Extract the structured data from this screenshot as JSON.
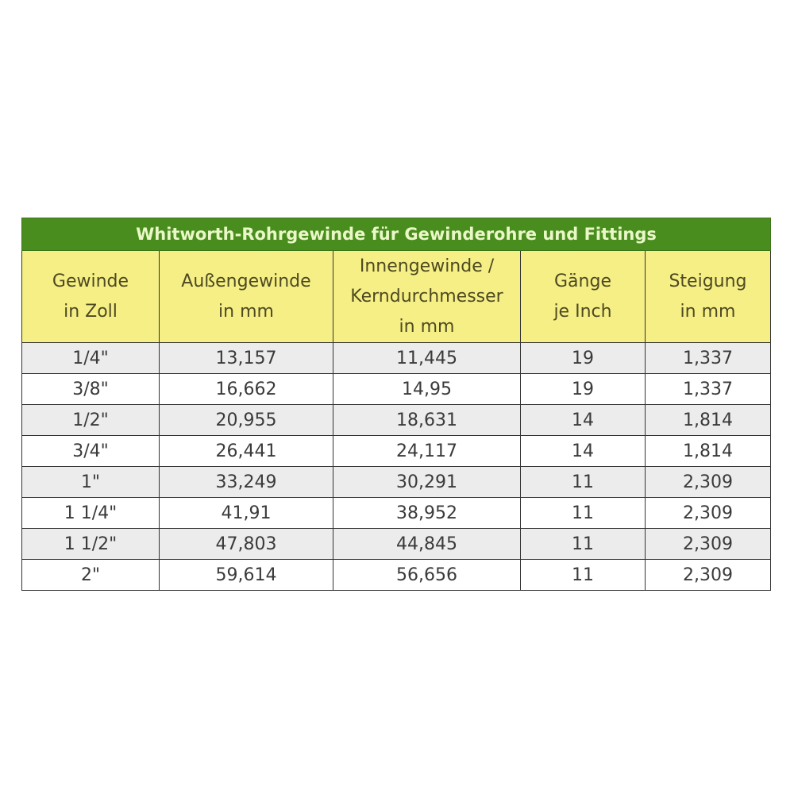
{
  "title": "Whitworth-Rohrgewinde für Gewinderohre und Fittings",
  "colors": {
    "title_bg": "#4a8d1f",
    "header_bg": "#f6ef86",
    "row_alt": "#ececec"
  },
  "headers": [
    [
      "Gewinde",
      "in Zoll"
    ],
    [
      "Außengewinde",
      "in mm"
    ],
    [
      "Innengewinde /",
      "Kerndurchmesser",
      "in mm"
    ],
    [
      "Gänge",
      "je Inch"
    ],
    [
      "Steigung",
      "in mm"
    ]
  ],
  "rows": [
    [
      "1/4\"",
      "13,157",
      "11,445",
      "19",
      "1,337"
    ],
    [
      "3/8\"",
      "16,662",
      "14,95",
      "19",
      "1,337"
    ],
    [
      "1/2\"",
      "20,955",
      "18,631",
      "14",
      "1,814"
    ],
    [
      "3/4\"",
      "26,441",
      "24,117",
      "14",
      "1,814"
    ],
    [
      "1\"",
      "33,249",
      "30,291",
      "11",
      "2,309"
    ],
    [
      "1 1/4\"",
      "41,91",
      "38,952",
      "11",
      "2,309"
    ],
    [
      "1 1/2\"",
      "47,803",
      "44,845",
      "11",
      "2,309"
    ],
    [
      "2\"",
      "59,614",
      "56,656",
      "11",
      "2,309"
    ]
  ]
}
